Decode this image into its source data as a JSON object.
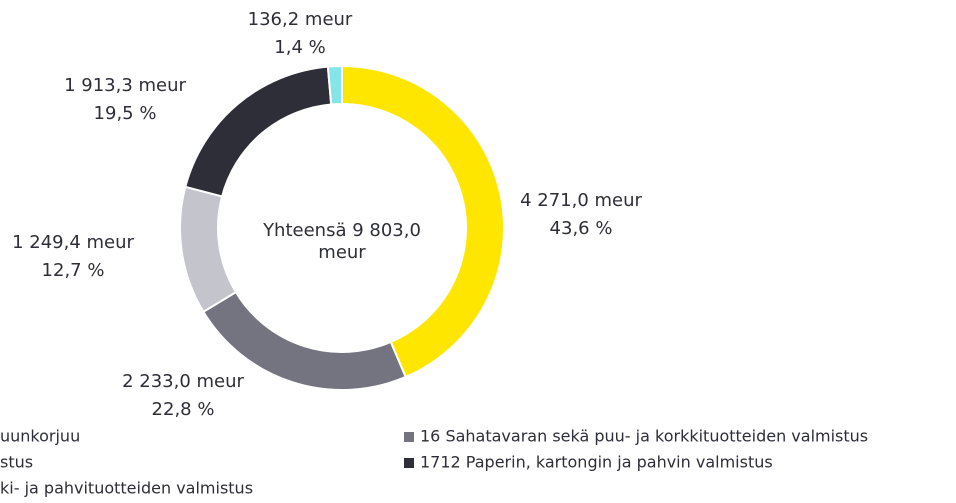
{
  "chart_data": {
    "type": "donut",
    "center_label": "Yhteensä 9 803,0 meur",
    "categories": [
      "uunkorjuu",
      "16 Sahatavaran sekä puu- ja korkkituotteiden valmistus",
      "stus",
      "1712 Paperin, kartongin ja pahvin valmistus",
      "ki- ja pahvituotteiden valmistus"
    ],
    "values": [
      4271.0,
      2233.0,
      1249.4,
      1913.3,
      136.2
    ],
    "value_labels": [
      "4 271,0 meur",
      "2 233,0 meur",
      "1 249,4 meur",
      "1 913,3 meur",
      "136,2 meur"
    ],
    "shares": [
      43.6,
      22.8,
      12.7,
      19.5,
      1.4
    ],
    "share_labels": [
      "43,6 %",
      "22,8 %",
      "12,7 %",
      "19,5 %",
      "1,4 %"
    ],
    "colors": [
      "#ffe600",
      "#747480",
      "#c4c4cd",
      "#2e2e38",
      "#85e6ea"
    ]
  }
}
